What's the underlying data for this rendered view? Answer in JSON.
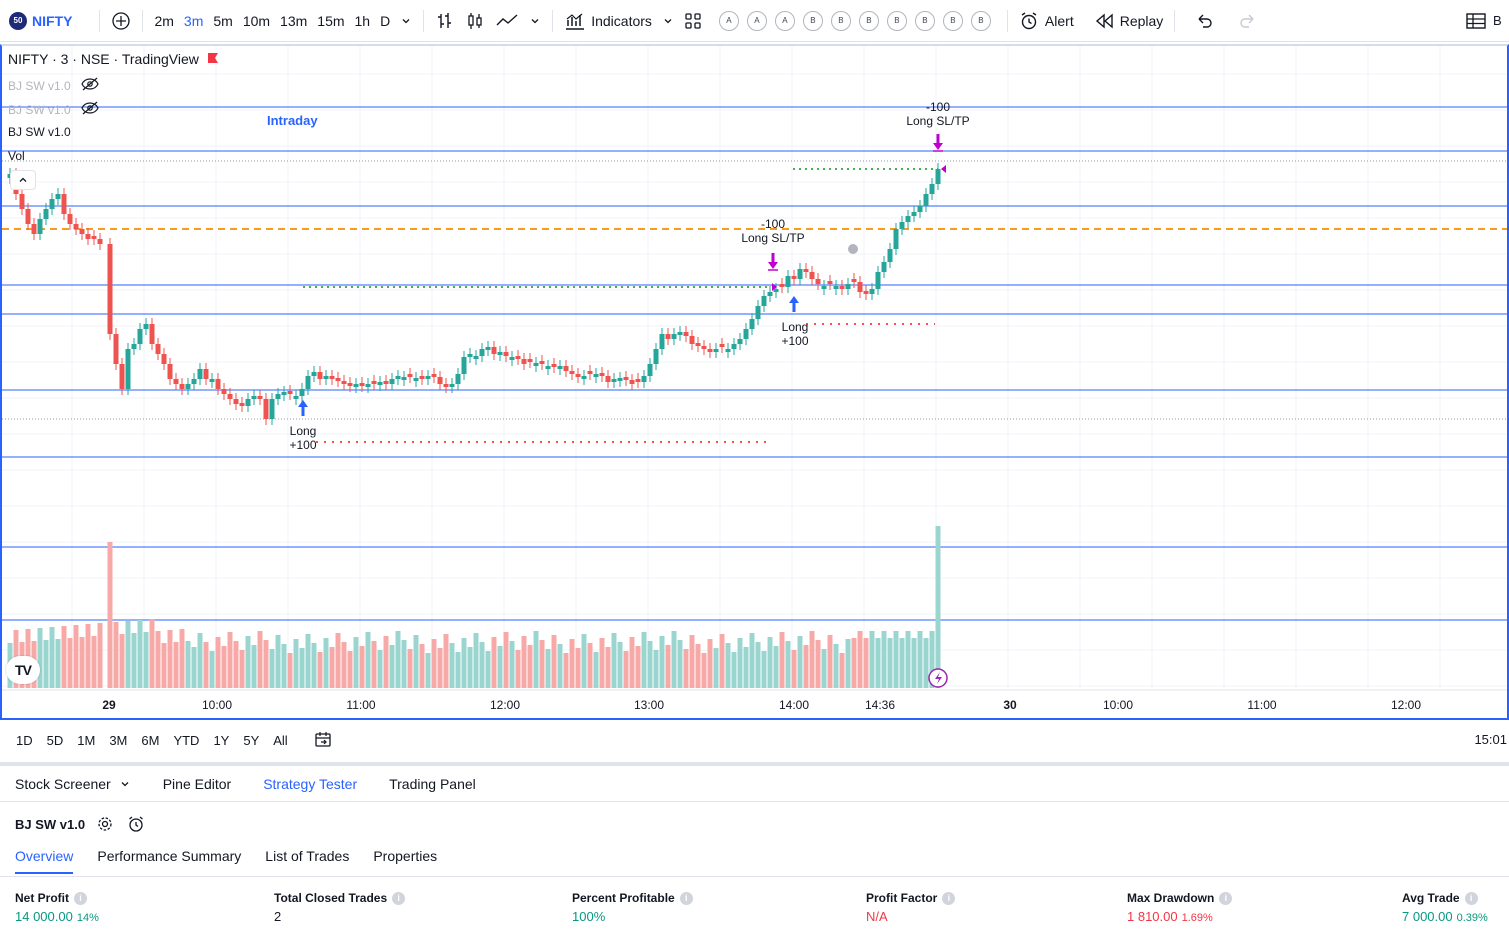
{
  "toolbar": {
    "symbol": "NIFTY",
    "symbol_badge": "50",
    "timeframes": [
      "2m",
      "3m",
      "5m",
      "10m",
      "13m",
      "15m",
      "1h",
      "D"
    ],
    "active_timeframe": "3m",
    "indicators_label": "Indicators",
    "layout_letters": [
      "A",
      "A",
      "A",
      "B",
      "B",
      "B",
      "B",
      "B",
      "B",
      "B"
    ],
    "alert_label": "Alert",
    "replay_label": "Replay",
    "trailing_letter": "B"
  },
  "legend": {
    "title": "NIFTY · 3 · NSE · TradingView",
    "studies": [
      "BJ SW v1.0",
      "BJ SW v1.0",
      "BJ SW v1.0"
    ],
    "vol_label": "Vol"
  },
  "chart": {
    "session_label": "Intraday",
    "x_labels": [
      "29",
      "10:00",
      "11:00",
      "12:00",
      "13:00",
      "14:00",
      "14:36",
      "30",
      "10:00",
      "11:00",
      "12:00"
    ],
    "trades": [
      {
        "entry_label": "Long",
        "entry_qty": "+100",
        "exit_label": "Long SL/TP",
        "exit_qty": "-100"
      },
      {
        "entry_label": "Long",
        "entry_qty": "+100",
        "exit_label": "Long SL/TP",
        "exit_qty": "-100"
      }
    ],
    "colors": {
      "up": "#26a69a",
      "down": "#ef5350",
      "vol_up": "#9ad6cf",
      "vol_down": "#f7a9a7",
      "hline": "#2962ff",
      "orange": "#f59b22",
      "marker": "#c000d0",
      "arrow": "#2962ff"
    }
  },
  "rangebar": {
    "ranges": [
      "1D",
      "5D",
      "1M",
      "3M",
      "6M",
      "YTD",
      "1Y",
      "5Y",
      "All"
    ],
    "time": "15:01"
  },
  "panel": {
    "tabs": [
      "Stock Screener",
      "Pine Editor",
      "Strategy Tester",
      "Trading Panel"
    ],
    "active_tab": "Strategy Tester",
    "strategy_name": "BJ SW v1.0",
    "sub_tabs": [
      "Overview",
      "Performance Summary",
      "List of Trades",
      "Properties"
    ],
    "active_sub_tab": "Overview",
    "metrics": [
      {
        "label": "Net Profit",
        "value": "14 000.00",
        "sub": "14%",
        "color": "#089981"
      },
      {
        "label": "Total Closed Trades",
        "value": "2",
        "sub": "",
        "color": "#131722"
      },
      {
        "label": "Percent Profitable",
        "value": "100%",
        "sub": "",
        "color": "#089981"
      },
      {
        "label": "Profit Factor",
        "value": "N/A",
        "sub": "",
        "color": "#f23645"
      },
      {
        "label": "Max Drawdown",
        "value": "1 810.00",
        "sub": "1.69%",
        "color": "#f23645"
      },
      {
        "label": "Avg Trade",
        "value": "7 000.00",
        "sub": "0.39%",
        "color": "#089981"
      }
    ]
  }
}
